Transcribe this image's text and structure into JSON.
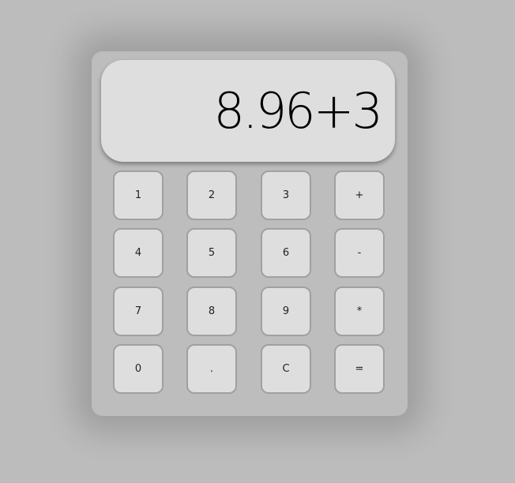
{
  "display": {
    "value": "8.96+3"
  },
  "keys": {
    "k1": "1",
    "k2": "2",
    "k3": "3",
    "plus": "+",
    "k4": "4",
    "k5": "5",
    "k6": "6",
    "minus": "-",
    "k7": "7",
    "k8": "8",
    "k9": "9",
    "multiply": "*",
    "k0": "0",
    "decimal": ".",
    "clear": "C",
    "equals": "="
  }
}
